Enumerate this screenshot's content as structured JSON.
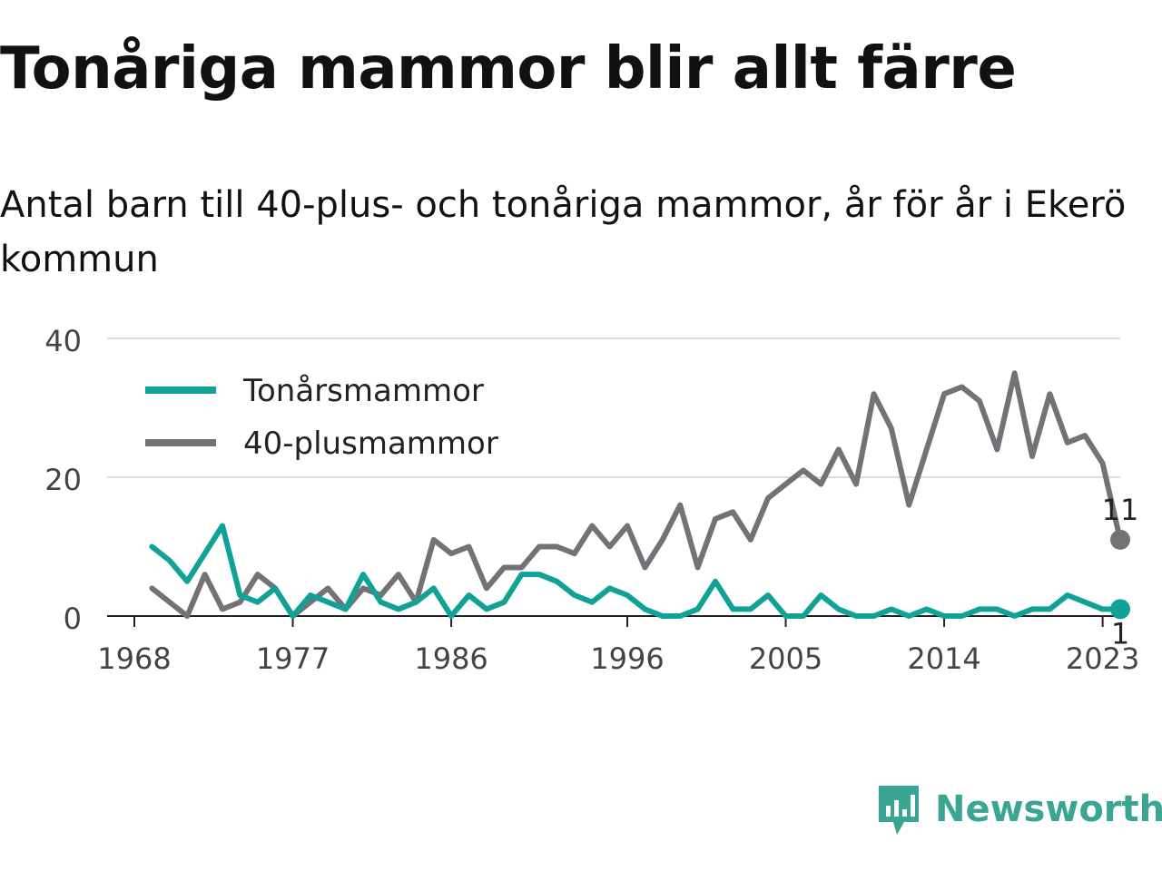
{
  "title": "Tonåriga mammor blir allt färre",
  "subtitle": "Antal barn till 40-plus- och tonåriga mammor, år för år i Ekerö kommun",
  "brand": {
    "name": "Newsworthy",
    "color": "#3aa592"
  },
  "chart_data": {
    "type": "line",
    "title": "Tonåriga mammor blir allt färre",
    "subtitle": "Antal barn till 40-plus- och tonåriga mammor, år för år i Ekerö kommun",
    "xlabel": "",
    "ylabel": "",
    "xlim": [
      1968,
      2024
    ],
    "ylim": [
      0,
      40
    ],
    "x_ticks": [
      1968,
      1977,
      1986,
      1996,
      2005,
      2014,
      2023
    ],
    "y_ticks": [
      0,
      20,
      40
    ],
    "grid": "horizontal",
    "legend_position": "top-left",
    "x": [
      1969,
      1970,
      1971,
      1972,
      1973,
      1974,
      1975,
      1976,
      1977,
      1978,
      1979,
      1980,
      1981,
      1982,
      1983,
      1984,
      1985,
      1986,
      1987,
      1988,
      1989,
      1990,
      1991,
      1992,
      1993,
      1994,
      1995,
      1996,
      1997,
      1998,
      1999,
      2000,
      2001,
      2002,
      2003,
      2004,
      2005,
      2006,
      2007,
      2008,
      2009,
      2010,
      2011,
      2012,
      2013,
      2014,
      2015,
      2016,
      2017,
      2018,
      2019,
      2020,
      2021,
      2022,
      2023,
      2024
    ],
    "series": [
      {
        "name": "Tonårsmammor",
        "color": "#10a296",
        "values": [
          10,
          8,
          5,
          9,
          13,
          3,
          2,
          4,
          0,
          3,
          2,
          1,
          6,
          2,
          1,
          2,
          4,
          0,
          3,
          1,
          2,
          6,
          6,
          5,
          3,
          2,
          4,
          3,
          1,
          0,
          0,
          1,
          5,
          1,
          1,
          3,
          0,
          0,
          3,
          1,
          0,
          0,
          1,
          0,
          1,
          0,
          0,
          1,
          1,
          0,
          1,
          1,
          3,
          2,
          1,
          1
        ],
        "end_label": "1"
      },
      {
        "name": "40-plusmammor",
        "color": "#727277",
        "values": [
          4,
          2,
          0,
          6,
          1,
          2,
          6,
          4,
          0,
          2,
          4,
          1,
          4,
          3,
          6,
          2,
          11,
          9,
          10,
          4,
          7,
          7,
          10,
          10,
          9,
          13,
          10,
          13,
          7,
          11,
          16,
          7,
          14,
          15,
          11,
          17,
          19,
          21,
          19,
          24,
          19,
          32,
          27,
          16,
          24,
          32,
          33,
          31,
          24,
          35,
          23,
          32,
          25,
          26,
          22,
          11
        ],
        "end_label": "11"
      }
    ]
  }
}
